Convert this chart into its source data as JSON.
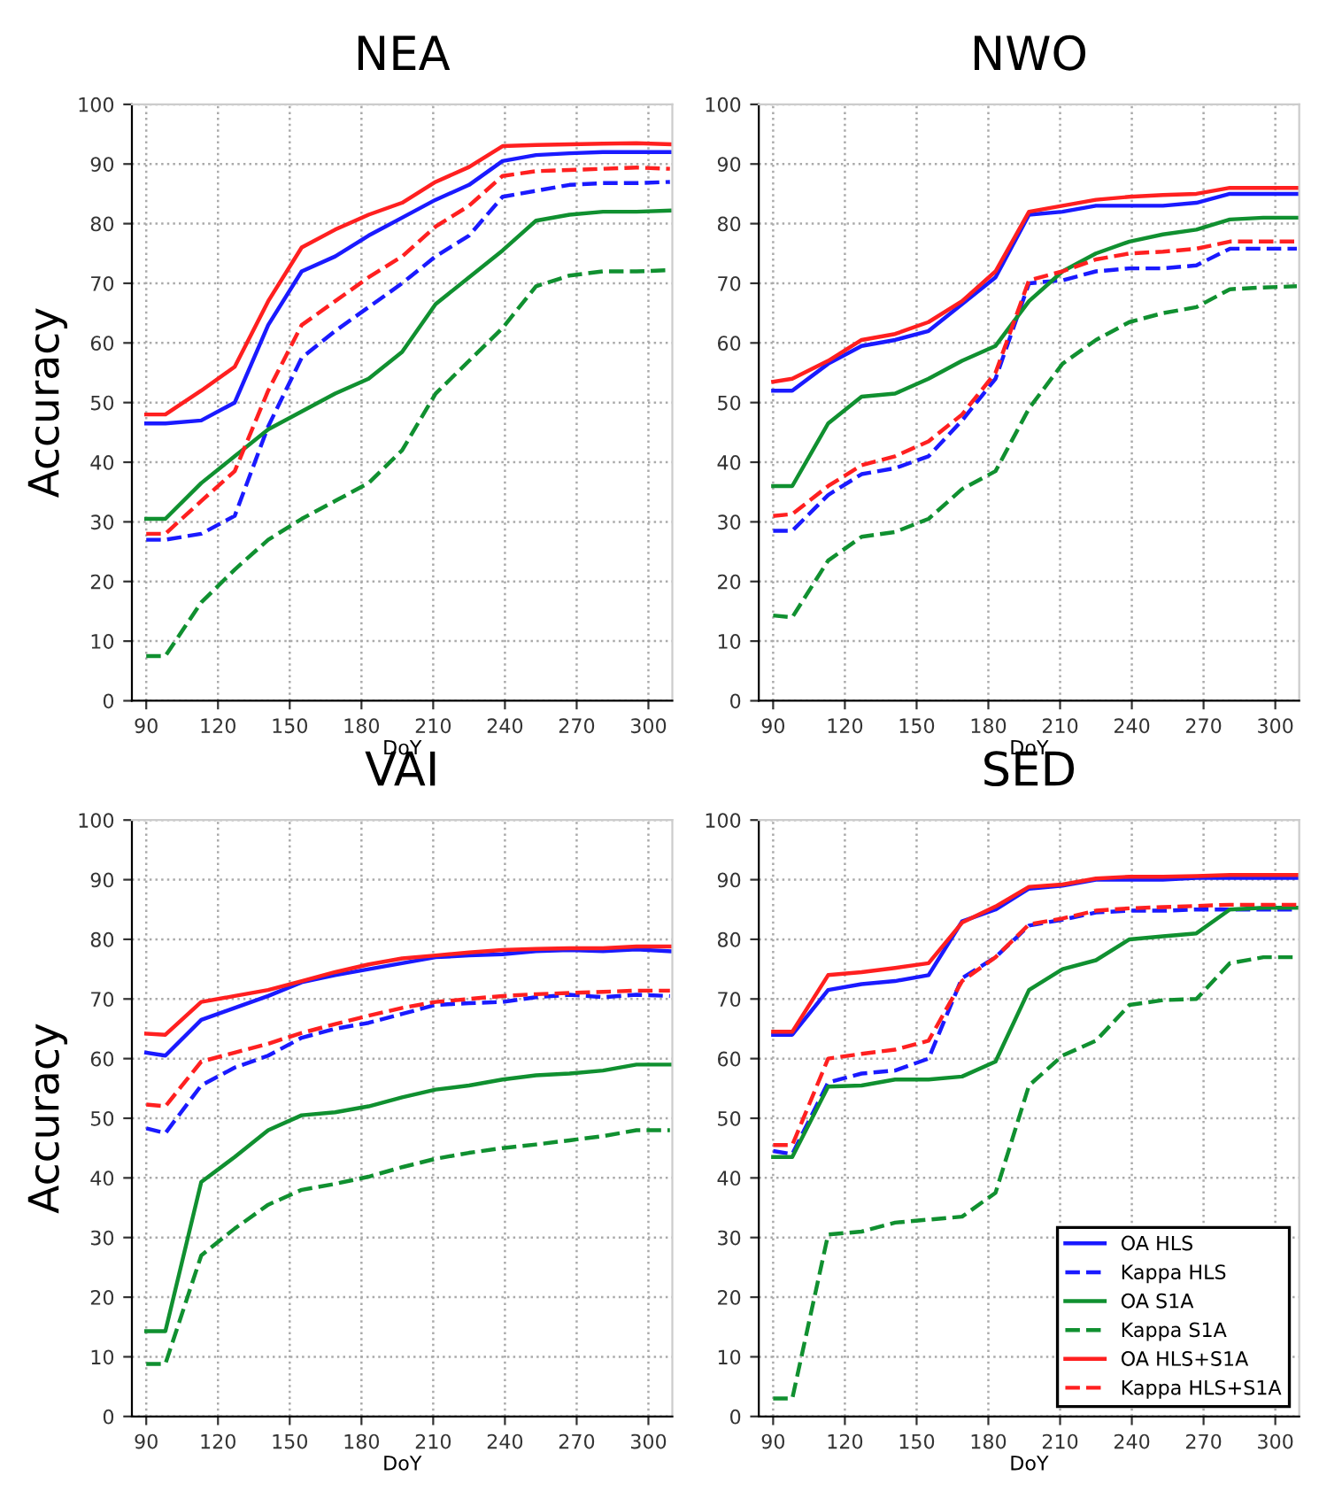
{
  "chart_data": [
    {
      "type": "line",
      "title": "NEA",
      "xlabel": "DoY",
      "ylabel": "Accuracy",
      "xlim": [
        84,
        310
      ],
      "xticks": [
        90,
        120,
        150,
        180,
        210,
        240,
        270,
        300
      ],
      "ylim": [
        0,
        100
      ],
      "yticks": [
        0,
        10,
        20,
        30,
        40,
        50,
        60,
        70,
        80,
        90,
        100
      ],
      "grid": true,
      "legend": false,
      "x": [
        90,
        98,
        113,
        127,
        141,
        155,
        169,
        183,
        197,
        211,
        225,
        239,
        253,
        267,
        281,
        295,
        309
      ],
      "series": [
        {
          "color": "#1a1aff",
          "line_style": "solid",
          "values": [
            46.5,
            46.5,
            47,
            50,
            63,
            72,
            74.5,
            78,
            81,
            84,
            86.5,
            90.5,
            91.5,
            91.8,
            92,
            92,
            92
          ]
        },
        {
          "color": "#1a1aff",
          "line_style": "dashed",
          "values": [
            27,
            27,
            28,
            31,
            46,
            57.5,
            62,
            66,
            70,
            74.5,
            78,
            84.5,
            85.5,
            86.5,
            86.8,
            86.8,
            87
          ]
        },
        {
          "color": "#109030",
          "line_style": "solid",
          "values": [
            30.5,
            30.5,
            36.5,
            41,
            45.5,
            48.5,
            51.5,
            54,
            58.5,
            66.5,
            71,
            75.5,
            80.5,
            81.5,
            82,
            82,
            82.2
          ]
        },
        {
          "color": "#109030",
          "line_style": "dashed",
          "values": [
            7.5,
            7.5,
            16.5,
            22,
            27,
            30.5,
            33.5,
            36.5,
            42,
            51.5,
            57,
            62.5,
            69.5,
            71.3,
            72,
            72,
            72.2
          ]
        },
        {
          "color": "#ff2020",
          "line_style": "solid",
          "values": [
            48,
            48,
            52,
            56,
            67,
            76,
            79,
            81.5,
            83.5,
            87,
            89.5,
            93,
            93.2,
            93.3,
            93.4,
            93.5,
            93.3
          ]
        },
        {
          "color": "#ff2020",
          "line_style": "dashed",
          "values": [
            28,
            28,
            33.5,
            38.5,
            52,
            63,
            67,
            71,
            74.5,
            79.5,
            83,
            88,
            88.8,
            89,
            89.2,
            89.4,
            89.2
          ]
        }
      ]
    },
    {
      "type": "line",
      "title": "NWO",
      "xlabel": "DoY",
      "xlim": [
        84,
        310
      ],
      "xticks": [
        90,
        120,
        150,
        180,
        210,
        240,
        270,
        300
      ],
      "ylim": [
        0,
        100
      ],
      "yticks": [
        0,
        10,
        20,
        30,
        40,
        50,
        60,
        70,
        80,
        90,
        100
      ],
      "grid": true,
      "legend": false,
      "x": [
        90,
        98,
        113,
        127,
        141,
        155,
        169,
        183,
        197,
        211,
        225,
        239,
        253,
        267,
        281,
        295,
        309
      ],
      "series": [
        {
          "color": "#1a1aff",
          "line_style": "solid",
          "values": [
            52,
            52,
            56.5,
            59.5,
            60.5,
            62,
            66.5,
            71,
            81.5,
            82,
            83,
            83,
            83,
            83.5,
            85,
            85,
            85
          ]
        },
        {
          "color": "#1a1aff",
          "line_style": "dashed",
          "values": [
            28.5,
            28.5,
            34.5,
            38,
            39,
            41,
            47,
            54,
            70,
            70.5,
            72,
            72.5,
            72.5,
            73,
            75.8,
            75.8,
            75.8
          ]
        },
        {
          "color": "#109030",
          "line_style": "solid",
          "values": [
            36,
            36,
            46.5,
            51,
            51.5,
            54,
            57,
            59.5,
            67,
            72,
            75,
            77,
            78.2,
            79,
            80.7,
            81,
            81
          ]
        },
        {
          "color": "#109030",
          "line_style": "dashed",
          "values": [
            14.3,
            14,
            23.5,
            27.5,
            28.3,
            30.5,
            35.5,
            38.5,
            49,
            56.5,
            60.5,
            63.5,
            65,
            66,
            69,
            69.3,
            69.5
          ]
        },
        {
          "color": "#ff2020",
          "line_style": "solid",
          "values": [
            53.5,
            54,
            57,
            60.5,
            61.5,
            63.5,
            67,
            72,
            82,
            83,
            84,
            84.5,
            84.8,
            85,
            86,
            86,
            86
          ]
        },
        {
          "color": "#ff2020",
          "line_style": "dashed",
          "values": [
            31,
            31.3,
            36,
            39.5,
            41,
            43.5,
            48,
            55,
            70.5,
            72,
            74,
            75,
            75.3,
            75.8,
            77,
            77,
            77
          ]
        }
      ]
    },
    {
      "type": "line",
      "title": "VAI",
      "xlabel": "DoY",
      "ylabel": "Accuracy",
      "xlim": [
        84,
        310
      ],
      "xticks": [
        90,
        120,
        150,
        180,
        210,
        240,
        270,
        300
      ],
      "ylim": [
        0,
        100
      ],
      "yticks": [
        0,
        10,
        20,
        30,
        40,
        50,
        60,
        70,
        80,
        90,
        100
      ],
      "grid": true,
      "legend": false,
      "x": [
        90,
        98,
        113,
        127,
        141,
        155,
        169,
        183,
        197,
        211,
        225,
        239,
        253,
        267,
        281,
        295,
        309
      ],
      "series": [
        {
          "color": "#1a1aff",
          "line_style": "solid",
          "values": [
            61,
            60.5,
            66.5,
            68.5,
            70.5,
            72.8,
            74,
            75,
            76,
            77,
            77.3,
            77.5,
            78,
            78.2,
            78,
            78.3,
            78
          ]
        },
        {
          "color": "#1a1aff",
          "line_style": "dashed",
          "values": [
            48.3,
            47.5,
            55.5,
            58.5,
            60.5,
            63.5,
            65,
            66,
            67.5,
            69,
            69.3,
            69.5,
            70.3,
            70.7,
            70.3,
            70.7,
            70.5
          ]
        },
        {
          "color": "#109030",
          "line_style": "solid",
          "values": [
            14.3,
            14.3,
            39.3,
            43.5,
            48,
            50.5,
            51,
            52,
            53.5,
            54.8,
            55.5,
            56.5,
            57.2,
            57.5,
            58,
            59,
            59
          ]
        },
        {
          "color": "#109030",
          "line_style": "dashed",
          "values": [
            8.8,
            8.8,
            27,
            31.5,
            35.5,
            38,
            39,
            40.2,
            41.8,
            43.2,
            44.2,
            45,
            45.6,
            46.3,
            47,
            48,
            48
          ]
        },
        {
          "color": "#ff2020",
          "line_style": "solid",
          "values": [
            64.2,
            64,
            69.5,
            70.5,
            71.5,
            73,
            74.5,
            75.8,
            76.8,
            77.3,
            77.8,
            78.2,
            78.4,
            78.5,
            78.5,
            78.8,
            78.8
          ]
        },
        {
          "color": "#ff2020",
          "line_style": "dashed",
          "values": [
            52.3,
            52,
            59.5,
            61,
            62.5,
            64.3,
            65.8,
            67.2,
            68.5,
            69.5,
            70,
            70.5,
            70.8,
            71,
            71.2,
            71.4,
            71.4
          ]
        }
      ]
    },
    {
      "type": "line",
      "title": "SED",
      "xlabel": "DoY",
      "xlim": [
        84,
        310
      ],
      "xticks": [
        90,
        120,
        150,
        180,
        210,
        240,
        270,
        300
      ],
      "ylim": [
        0,
        100
      ],
      "yticks": [
        0,
        10,
        20,
        30,
        40,
        50,
        60,
        70,
        80,
        90,
        100
      ],
      "grid": true,
      "legend": "bottom right",
      "x": [
        90,
        98,
        113,
        127,
        141,
        155,
        169,
        183,
        197,
        211,
        225,
        239,
        253,
        267,
        281,
        295,
        309
      ],
      "series": [
        {
          "name": "OA HLS",
          "color": "#1a1aff",
          "line_style": "solid",
          "values": [
            64,
            64,
            71.5,
            72.5,
            73,
            74,
            83,
            85,
            88.5,
            89,
            90,
            90,
            90,
            90.3,
            90.3,
            90.3,
            90.3
          ]
        },
        {
          "name": "Kappa HLS",
          "color": "#1a1aff",
          "line_style": "dashed",
          "values": [
            44.5,
            44,
            56,
            57.5,
            58,
            60,
            73.5,
            77,
            82.3,
            83.3,
            84.5,
            84.8,
            84.8,
            85,
            85,
            85,
            85
          ]
        },
        {
          "name": "OA S1A",
          "color": "#109030",
          "line_style": "solid",
          "values": [
            43.5,
            43.5,
            55.3,
            55.5,
            56.5,
            56.5,
            57,
            59.5,
            71.5,
            75,
            76.5,
            80,
            80.5,
            81,
            85,
            85.3,
            85.3
          ]
        },
        {
          "name": "Kappa S1A",
          "color": "#109030",
          "line_style": "dashed",
          "values": [
            3,
            3,
            30.5,
            31,
            32.5,
            33,
            33.5,
            37.5,
            55.5,
            60.5,
            63,
            69,
            69.8,
            70,
            76,
            77,
            77
          ]
        },
        {
          "name": "OA HLS+S1A",
          "color": "#ff2020",
          "line_style": "solid",
          "values": [
            64.5,
            64.5,
            74,
            74.5,
            75.2,
            76,
            82.8,
            85.5,
            88.8,
            89.2,
            90.2,
            90.5,
            90.5,
            90.6,
            90.8,
            90.8,
            90.8
          ]
        },
        {
          "name": "Kappa HLS+S1A",
          "color": "#ff2020",
          "line_style": "dashed",
          "values": [
            45.5,
            45.5,
            60,
            60.8,
            61.5,
            63,
            73,
            77,
            82.5,
            83.5,
            84.8,
            85.2,
            85.4,
            85.6,
            85.8,
            85.8,
            85.8
          ]
        }
      ]
    }
  ]
}
